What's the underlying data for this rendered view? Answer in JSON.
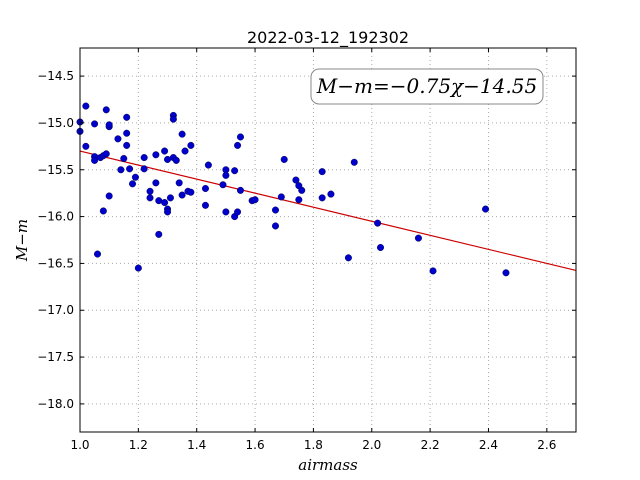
{
  "chart_data": {
    "type": "scatter",
    "title": "2022-03-12_192302",
    "xlabel": "airmass",
    "ylabel": "M−m",
    "xlim": [
      1.0,
      2.7
    ],
    "ylim": [
      -18.3,
      -14.2
    ],
    "y_inverted": true,
    "grid": true,
    "xticks": [
      1.0,
      1.2,
      1.4,
      1.6,
      1.8,
      2.0,
      2.2,
      2.4,
      2.6
    ],
    "xtick_labels": [
      "1.0",
      "1.2",
      "1.4",
      "1.6",
      "1.8",
      "2.0",
      "2.2",
      "2.4",
      "2.6"
    ],
    "yticks": [
      -14.5,
      -15.0,
      -15.5,
      -16.0,
      -16.5,
      -17.0,
      -17.5,
      -18.0
    ],
    "ytick_labels": [
      "−14.5",
      "−15.0",
      "−15.5",
      "−16.0",
      "−16.5",
      "−17.0",
      "−17.5",
      "−18.0"
    ],
    "annotation": "M−m=−0.75χ−14.55",
    "fit": {
      "slope": -0.75,
      "intercept": -14.55,
      "color": "#cc0000"
    },
    "point_color": "#0000cc",
    "points": [
      [
        1.0,
        -14.99
      ],
      [
        1.0,
        -15.09
      ],
      [
        1.02,
        -15.25
      ],
      [
        1.02,
        -14.82
      ],
      [
        1.05,
        -15.01
      ],
      [
        1.05,
        -15.36
      ],
      [
        1.05,
        -15.4
      ],
      [
        1.06,
        -16.4
      ],
      [
        1.07,
        -15.37
      ],
      [
        1.08,
        -15.35
      ],
      [
        1.08,
        -15.94
      ],
      [
        1.09,
        -14.86
      ],
      [
        1.09,
        -15.33
      ],
      [
        1.1,
        -15.04
      ],
      [
        1.1,
        -15.78
      ],
      [
        1.1,
        -15.02
      ],
      [
        1.13,
        -15.17
      ],
      [
        1.14,
        -15.5
      ],
      [
        1.15,
        -15.38
      ],
      [
        1.16,
        -14.94
      ],
      [
        1.16,
        -15.11
      ],
      [
        1.16,
        -15.24
      ],
      [
        1.17,
        -15.49
      ],
      [
        1.18,
        -15.65
      ],
      [
        1.19,
        -15.58
      ],
      [
        1.2,
        -16.55
      ],
      [
        1.22,
        -15.37
      ],
      [
        1.22,
        -15.49
      ],
      [
        1.24,
        -15.73
      ],
      [
        1.24,
        -15.8
      ],
      [
        1.26,
        -15.34
      ],
      [
        1.26,
        -15.64
      ],
      [
        1.27,
        -15.83
      ],
      [
        1.27,
        -16.19
      ],
      [
        1.29,
        -15.3
      ],
      [
        1.29,
        -15.85
      ],
      [
        1.3,
        -15.39
      ],
      [
        1.3,
        -15.92
      ],
      [
        1.3,
        -15.95
      ],
      [
        1.31,
        -15.8
      ],
      [
        1.32,
        -14.92
      ],
      [
        1.32,
        -15.37
      ],
      [
        1.32,
        -14.96
      ],
      [
        1.33,
        -15.4
      ],
      [
        1.34,
        -15.64
      ],
      [
        1.35,
        -15.12
      ],
      [
        1.35,
        -15.77
      ],
      [
        1.36,
        -15.3
      ],
      [
        1.37,
        -15.73
      ],
      [
        1.38,
        -15.24
      ],
      [
        1.38,
        -15.74
      ],
      [
        1.43,
        -15.7
      ],
      [
        1.43,
        -15.88
      ],
      [
        1.44,
        -15.45
      ],
      [
        1.49,
        -15.66
      ],
      [
        1.5,
        -15.5
      ],
      [
        1.5,
        -15.56
      ],
      [
        1.5,
        -15.95
      ],
      [
        1.53,
        -15.51
      ],
      [
        1.53,
        -16.0
      ],
      [
        1.54,
        -15.24
      ],
      [
        1.54,
        -15.95
      ],
      [
        1.55,
        -15.15
      ],
      [
        1.55,
        -15.72
      ],
      [
        1.59,
        -15.83
      ],
      [
        1.6,
        -15.82
      ],
      [
        1.67,
        -15.93
      ],
      [
        1.67,
        -16.1
      ],
      [
        1.69,
        -15.79
      ],
      [
        1.7,
        -15.39
      ],
      [
        1.74,
        -15.61
      ],
      [
        1.75,
        -15.82
      ],
      [
        1.75,
        -15.67
      ],
      [
        1.76,
        -15.72
      ],
      [
        1.83,
        -15.52
      ],
      [
        1.83,
        -15.8
      ],
      [
        1.86,
        -15.76
      ],
      [
        1.92,
        -16.44
      ],
      [
        1.94,
        -15.42
      ],
      [
        2.02,
        -16.07
      ],
      [
        2.03,
        -16.33
      ],
      [
        2.16,
        -16.23
      ],
      [
        2.21,
        -16.58
      ],
      [
        2.39,
        -15.92
      ],
      [
        2.46,
        -16.6
      ]
    ]
  }
}
